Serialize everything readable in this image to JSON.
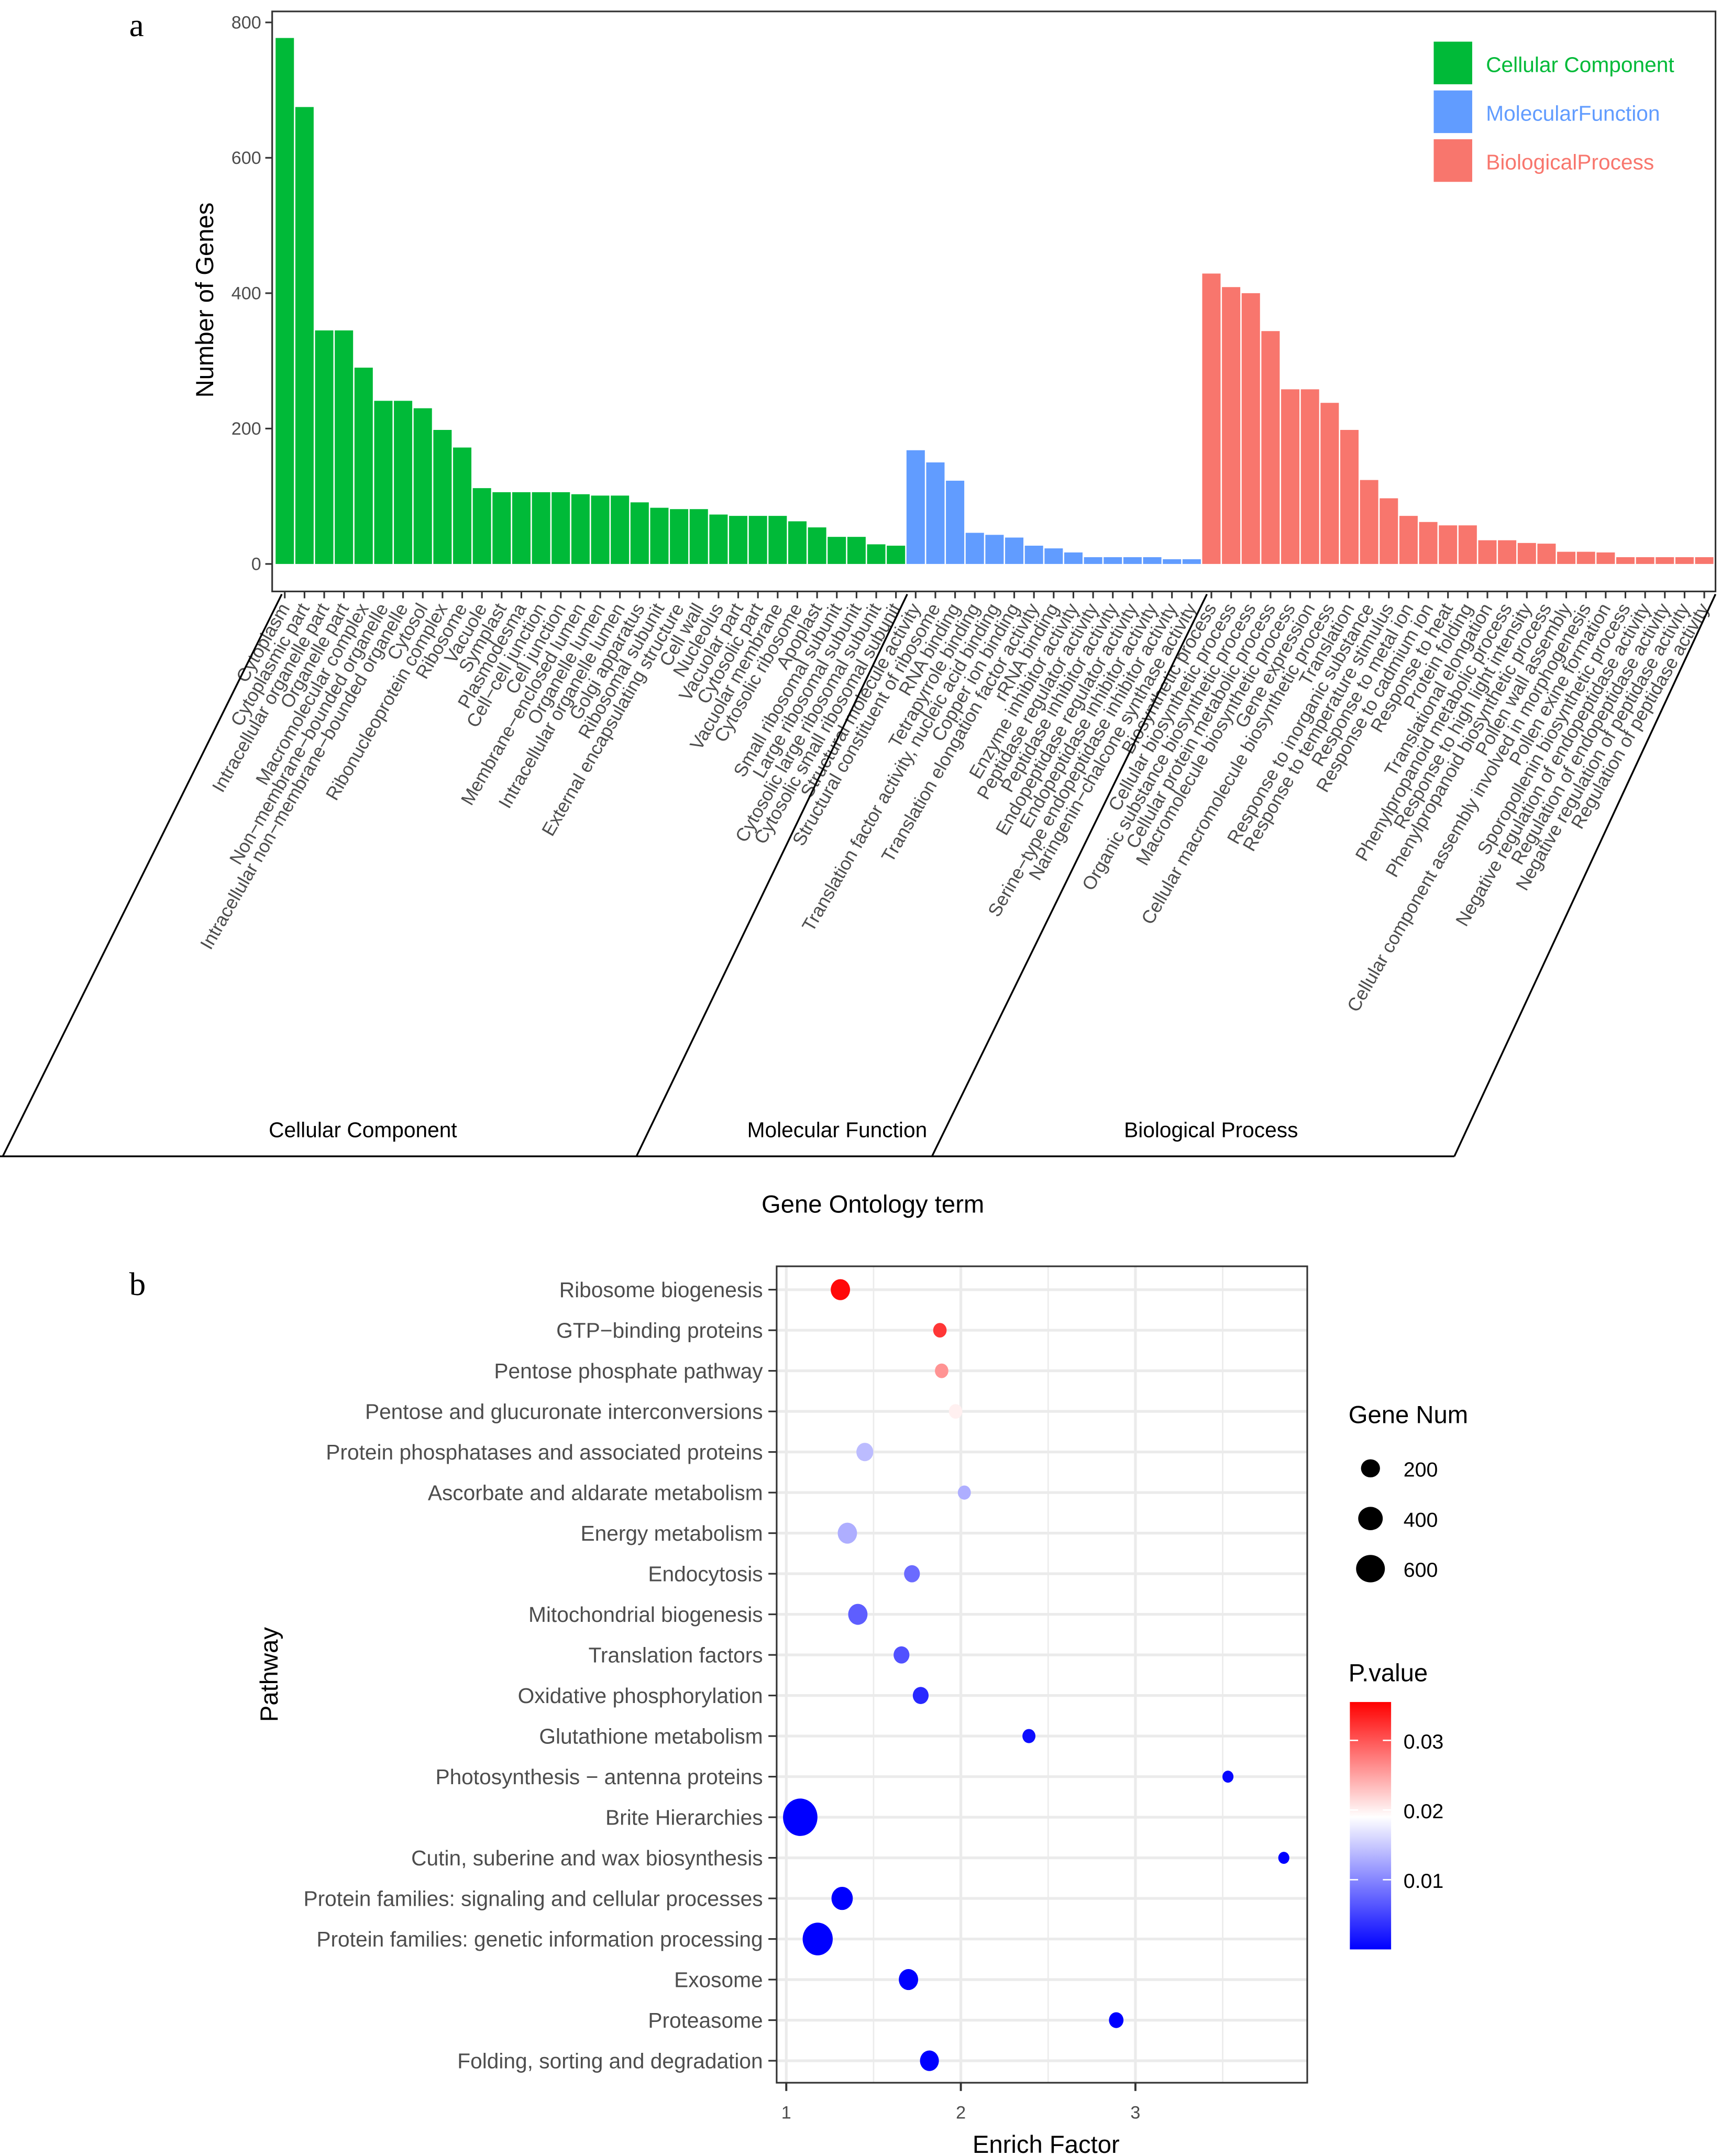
{
  "panel_labels": {
    "a": "a",
    "b": "b"
  },
  "chart_data": [
    {
      "type": "bar",
      "xlabel": "Gene Ontology term",
      "ylabel": "Number of Genes",
      "ylim": [
        0,
        800
      ],
      "yticks": [
        "0",
        "200",
        "400",
        "600",
        "800"
      ],
      "grid": false,
      "legend_placement": "top-right",
      "series": [
        {
          "name": "Cellular Component",
          "legend_label": "Cellular Component",
          "group_label": "Cellular Component",
          "color": "#00BA38",
          "categories": [
            "Cytoplasm",
            "Cytoplasmic part",
            "Intracellular organelle part",
            "Organelle part",
            "Macromolecular complex",
            "Non−membrane−bounded organelle",
            "Intracellular non−membrane−bounded organelle",
            "Cytosol",
            "Ribonucleoprotein complex",
            "Ribosome",
            "Vacuole",
            "Symplast",
            "Plasmodesma",
            "Cell−cell junction",
            "Cell junction",
            "Membrane−enclosed lumen",
            "Organelle lumen",
            "Intracellular organelle lumen",
            "Golgi apparatus",
            "Ribosomal subunit",
            "External encapsulating structure",
            "Cell wall",
            "Nucleolus",
            "Vacuolar part",
            "Cytosolic part",
            "Vacuolar membrane",
            "Cytosolic ribosome",
            "Apoplast",
            "Small ribosomal subunit",
            "Large ribosomal subunit",
            "Cytosolic large ribosomal subunit",
            "Cytosolic small ribosomal subunit"
          ],
          "values": [
            777,
            675,
            345,
            345,
            290,
            241,
            241,
            230,
            198,
            172,
            112,
            106,
            106,
            106,
            106,
            103,
            101,
            101,
            91,
            83,
            81,
            81,
            73,
            71,
            71,
            71,
            63,
            54,
            40,
            40,
            29,
            27
          ]
        },
        {
          "name": "Molecular Function",
          "legend_label": "MolecularFunction",
          "group_label": "Molecular Function",
          "color": "#619CFF",
          "categories": [
            "Structural molecule activity",
            "Structural constituent of ribosome",
            "RNA binding",
            "Tetrapyrrole binding",
            "Translation factor activity, nucleic acid binding",
            "Copper ion binding",
            "Translation elongation factor activity",
            "rRNA binding",
            "Enzyme inhibitor activity",
            "Peptidase regulator activity",
            "Peptidase inhibitor activity",
            "Endopeptidase regulator activity",
            "Endopeptidase inhibitor activity",
            "Serine−type endopeptidase inhibitor activity",
            "Naringenin−chalcone synthase activity"
          ],
          "values": [
            168,
            150,
            123,
            46,
            43,
            39,
            27,
            23,
            17,
            10,
            10,
            10,
            10,
            7,
            7
          ]
        },
        {
          "name": "Biological Process",
          "legend_label": "BiologicalProcess",
          "group_label": "Biological Process",
          "color": "#F8766D",
          "categories": [
            "Biosynthetic process",
            "Cellular biosynthetic process",
            "Organic substance biosynthetic process",
            "Cellular protein metabolic process",
            "Macromolecule biosynthetic process",
            "Gene expression",
            "Cellular macromolecule biosynthetic process",
            "Translation",
            "Response to inorganic substance",
            "Response to temperature stimulus",
            "Response to metal ion",
            "Response to cadmium ion",
            "Response to heat",
            "Protein folding",
            "Translational elongation",
            "Phenylpropanoid metabolic process",
            "Response to high light intensity",
            "Phenylpropanoid biosynthetic process",
            "Pollen wall assembly",
            "Cellular component assembly involved in morphogenesis",
            "Pollen exine formation",
            "Sporopollenin biosynthetic process",
            "Negative regulation of endopeptidase activity",
            "Regulation of endopeptidase activity",
            "Negative regulation of peptidase activity",
            "Regulation of peptidase activity"
          ],
          "values": [
            429,
            409,
            400,
            344,
            258,
            258,
            238,
            198,
            124,
            97,
            71,
            62,
            57,
            57,
            35,
            35,
            31,
            30,
            18,
            18,
            17,
            10,
            10,
            10,
            10,
            10
          ]
        }
      ]
    },
    {
      "type": "scatter",
      "xlabel": "Enrich Factor",
      "ylabel": "Pathway",
      "xlim": [
        0.95,
        4.0
      ],
      "xticks": [
        "1",
        "2",
        "3"
      ],
      "grid": true,
      "legend_placement": "right",
      "size_legend": {
        "title": "Gene Num",
        "values": [
          200,
          400,
          600
        ],
        "labels": [
          "200",
          "400",
          "600"
        ]
      },
      "color_legend": {
        "title": "P.value",
        "range": [
          0,
          0.0355
        ],
        "ticks": [
          0.03,
          0.02,
          0.01
        ],
        "labels": [
          "0.03",
          "0.02",
          "0.01"
        ],
        "low_color": "#0000FF",
        "mid_color": "#FFFFFF",
        "high_color": "#FF0000"
      },
      "points": [
        {
          "pathway": "Ribosome biogenesis",
          "enrich_factor": 1.31,
          "p_value": 0.035,
          "gene_num": 150
        },
        {
          "pathway": "GTP−binding proteins",
          "enrich_factor": 1.88,
          "p_value": 0.032,
          "gene_num": 45
        },
        {
          "pathway": "Pentose phosphate pathway",
          "enrich_factor": 1.89,
          "p_value": 0.026,
          "gene_num": 45
        },
        {
          "pathway": "Pentose and glucuronate interconversions",
          "enrich_factor": 1.97,
          "p_value": 0.02,
          "gene_num": 45
        },
        {
          "pathway": "Protein phosphatases and associated proteins",
          "enrich_factor": 1.45,
          "p_value": 0.014,
          "gene_num": 100
        },
        {
          "pathway": "Ascorbate and aldarate metabolism",
          "enrich_factor": 2.02,
          "p_value": 0.013,
          "gene_num": 40
        },
        {
          "pathway": "Energy metabolism",
          "enrich_factor": 1.35,
          "p_value": 0.013,
          "gene_num": 150
        },
        {
          "pathway": "Endocytosis",
          "enrich_factor": 1.72,
          "p_value": 0.008,
          "gene_num": 80
        },
        {
          "pathway": "Mitochondrial biogenesis",
          "enrich_factor": 1.41,
          "p_value": 0.007,
          "gene_num": 150
        },
        {
          "pathway": "Translation factors",
          "enrich_factor": 1.66,
          "p_value": 0.006,
          "gene_num": 80
        },
        {
          "pathway": "Oxidative phosphorylation",
          "enrich_factor": 1.77,
          "p_value": 0.003,
          "gene_num": 80
        },
        {
          "pathway": "Glutathione metabolism",
          "enrich_factor": 2.39,
          "p_value": 0.001,
          "gene_num": 40
        },
        {
          "pathway": "Photosynthesis − antenna proteins",
          "enrich_factor": 3.53,
          "p_value": 0.0005,
          "gene_num": 20
        },
        {
          "pathway": "Brite Hierarchies",
          "enrich_factor": 1.08,
          "p_value": 0.0,
          "gene_num": 700
        },
        {
          "pathway": "Cutin, suberine and wax biosynthesis",
          "enrich_factor": 3.85,
          "p_value": 0.0,
          "gene_num": 20
        },
        {
          "pathway": "Protein families: signaling and cellular processes",
          "enrich_factor": 1.32,
          "p_value": 0.0,
          "gene_num": 200
        },
        {
          "pathway": "Protein families: genetic information processing",
          "enrich_factor": 1.18,
          "p_value": 0.0,
          "gene_num": 500
        },
        {
          "pathway": "Exosome",
          "enrich_factor": 1.7,
          "p_value": 0.0,
          "gene_num": 150
        },
        {
          "pathway": "Proteasome",
          "enrich_factor": 2.89,
          "p_value": 0.0,
          "gene_num": 60
        },
        {
          "pathway": "Folding, sorting and degradation",
          "enrich_factor": 1.82,
          "p_value": 0.0,
          "gene_num": 140
        }
      ]
    }
  ]
}
